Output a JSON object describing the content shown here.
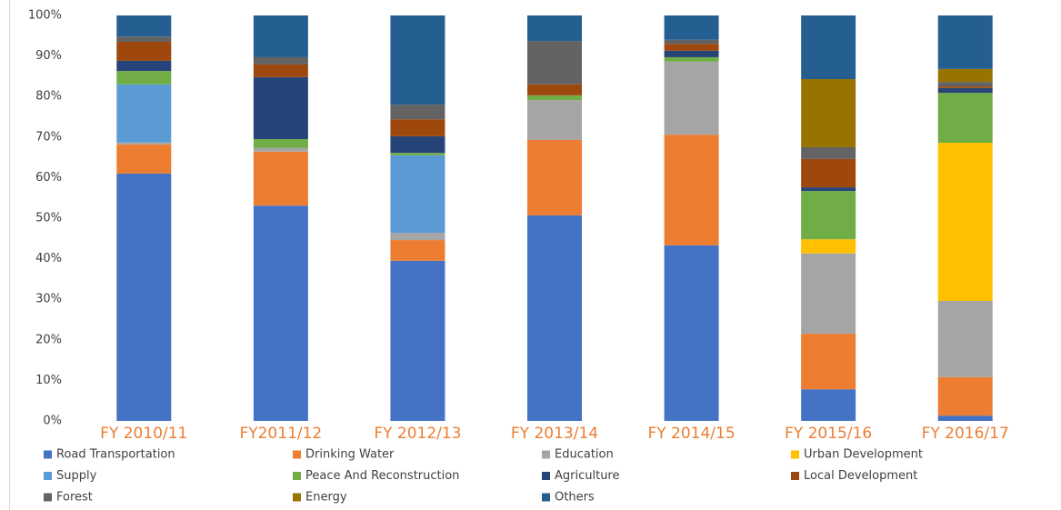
{
  "chart_data": {
    "type": "stacked_bar",
    "categories": [
      "FY 2010/11",
      "FY2011/12",
      "FY 2012/13",
      "FY 2013/14",
      "FY 2014/15",
      "FY 2015/16",
      "FY 2016/17"
    ],
    "series": [
      {
        "name": "Road Transportation",
        "color": "#4472c4",
        "values": [
          61,
          53.1,
          39.5,
          50.7,
          43.3,
          7.8,
          1.3
        ]
      },
      {
        "name": "Drinking Water",
        "color": "#ed7d31",
        "values": [
          7.2,
          13.3,
          5.1,
          18.6,
          27.3,
          13.7,
          9.5
        ]
      },
      {
        "name": "Education",
        "color": "#a5a5a5",
        "values": [
          0.5,
          0.9,
          1.8,
          9.8,
          18,
          19.8,
          18.8
        ]
      },
      {
        "name": "Urban Development",
        "color": "#ffc000",
        "values": [
          0,
          0,
          0,
          0,
          0,
          3.5,
          39
        ]
      },
      {
        "name": "Supply",
        "color": "#5b9bd5",
        "values": [
          14.3,
          0,
          19.1,
          0,
          0,
          0,
          0
        ]
      },
      {
        "name": "Peace And Reconstruction",
        "color": "#70ad47",
        "values": [
          3.3,
          2.2,
          0.6,
          1.2,
          1.1,
          11.9,
          12.3
        ]
      },
      {
        "name": "Agriculture",
        "color": "#264478",
        "values": [
          2.5,
          15.3,
          4.1,
          0,
          1.6,
          0.9,
          1.2
        ]
      },
      {
        "name": "Local Development",
        "color": "#9e480e",
        "values": [
          4.7,
          3.1,
          4.2,
          2.7,
          1.7,
          7,
          0.4
        ]
      },
      {
        "name": "Forest",
        "color": "#636363",
        "values": [
          1.3,
          1.8,
          3.6,
          10.7,
          1,
          2.9,
          1.1
        ]
      },
      {
        "name": "Energy",
        "color": "#997300",
        "values": [
          0,
          0,
          0,
          0,
          0,
          16.8,
          3.2
        ]
      },
      {
        "name": "Others",
        "color": "#255e91",
        "values": [
          5.2,
          10.3,
          22,
          6.3,
          6,
          15.7,
          13.2
        ]
      }
    ],
    "ylim": [
      0,
      100
    ],
    "yticks": [
      {
        "value": 0,
        "label": "0%"
      },
      {
        "value": 10,
        "label": "10%"
      },
      {
        "value": 20,
        "label": "20%"
      },
      {
        "value": 30,
        "label": "30%"
      },
      {
        "value": 40,
        "label": "40%"
      },
      {
        "value": 50,
        "label": "50%"
      },
      {
        "value": 60,
        "label": "60%"
      },
      {
        "value": 70,
        "label": "70%"
      },
      {
        "value": 80,
        "label": "80%"
      },
      {
        "value": 90,
        "label": "90%"
      },
      {
        "value": 100,
        "label": "100%"
      }
    ],
    "grid": false,
    "legend": "bottom"
  }
}
